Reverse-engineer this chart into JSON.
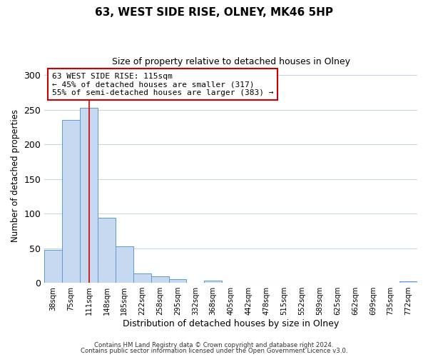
{
  "title": "63, WEST SIDE RISE, OLNEY, MK46 5HP",
  "subtitle": "Size of property relative to detached houses in Olney",
  "xlabel": "Distribution of detached houses by size in Olney",
  "ylabel": "Number of detached properties",
  "bar_labels": [
    "38sqm",
    "75sqm",
    "111sqm",
    "148sqm",
    "185sqm",
    "222sqm",
    "258sqm",
    "295sqm",
    "332sqm",
    "368sqm",
    "405sqm",
    "442sqm",
    "478sqm",
    "515sqm",
    "552sqm",
    "589sqm",
    "625sqm",
    "662sqm",
    "699sqm",
    "735sqm",
    "772sqm"
  ],
  "bar_values": [
    48,
    235,
    253,
    94,
    53,
    14,
    9,
    5,
    0,
    3,
    0,
    0,
    0,
    0,
    0,
    0,
    0,
    0,
    0,
    0,
    2
  ],
  "bar_color": "#c6d9f1",
  "bar_edge_color": "#5b9bd5",
  "ylim": [
    0,
    310
  ],
  "yticks": [
    0,
    50,
    100,
    150,
    200,
    250,
    300
  ],
  "vline_x_index": 2,
  "vline_color": "#cc0000",
  "annotation_text_line1": "63 WEST SIDE RISE: 115sqm",
  "annotation_text_line2": "← 45% of detached houses are smaller (317)",
  "annotation_text_line3": "55% of semi-detached houses are larger (383) →",
  "footer_line1": "Contains HM Land Registry data © Crown copyright and database right 2024.",
  "footer_line2": "Contains public sector information licensed under the Open Government Licence v3.0.",
  "background_color": "#ffffff",
  "grid_color": "#c8d8e8"
}
